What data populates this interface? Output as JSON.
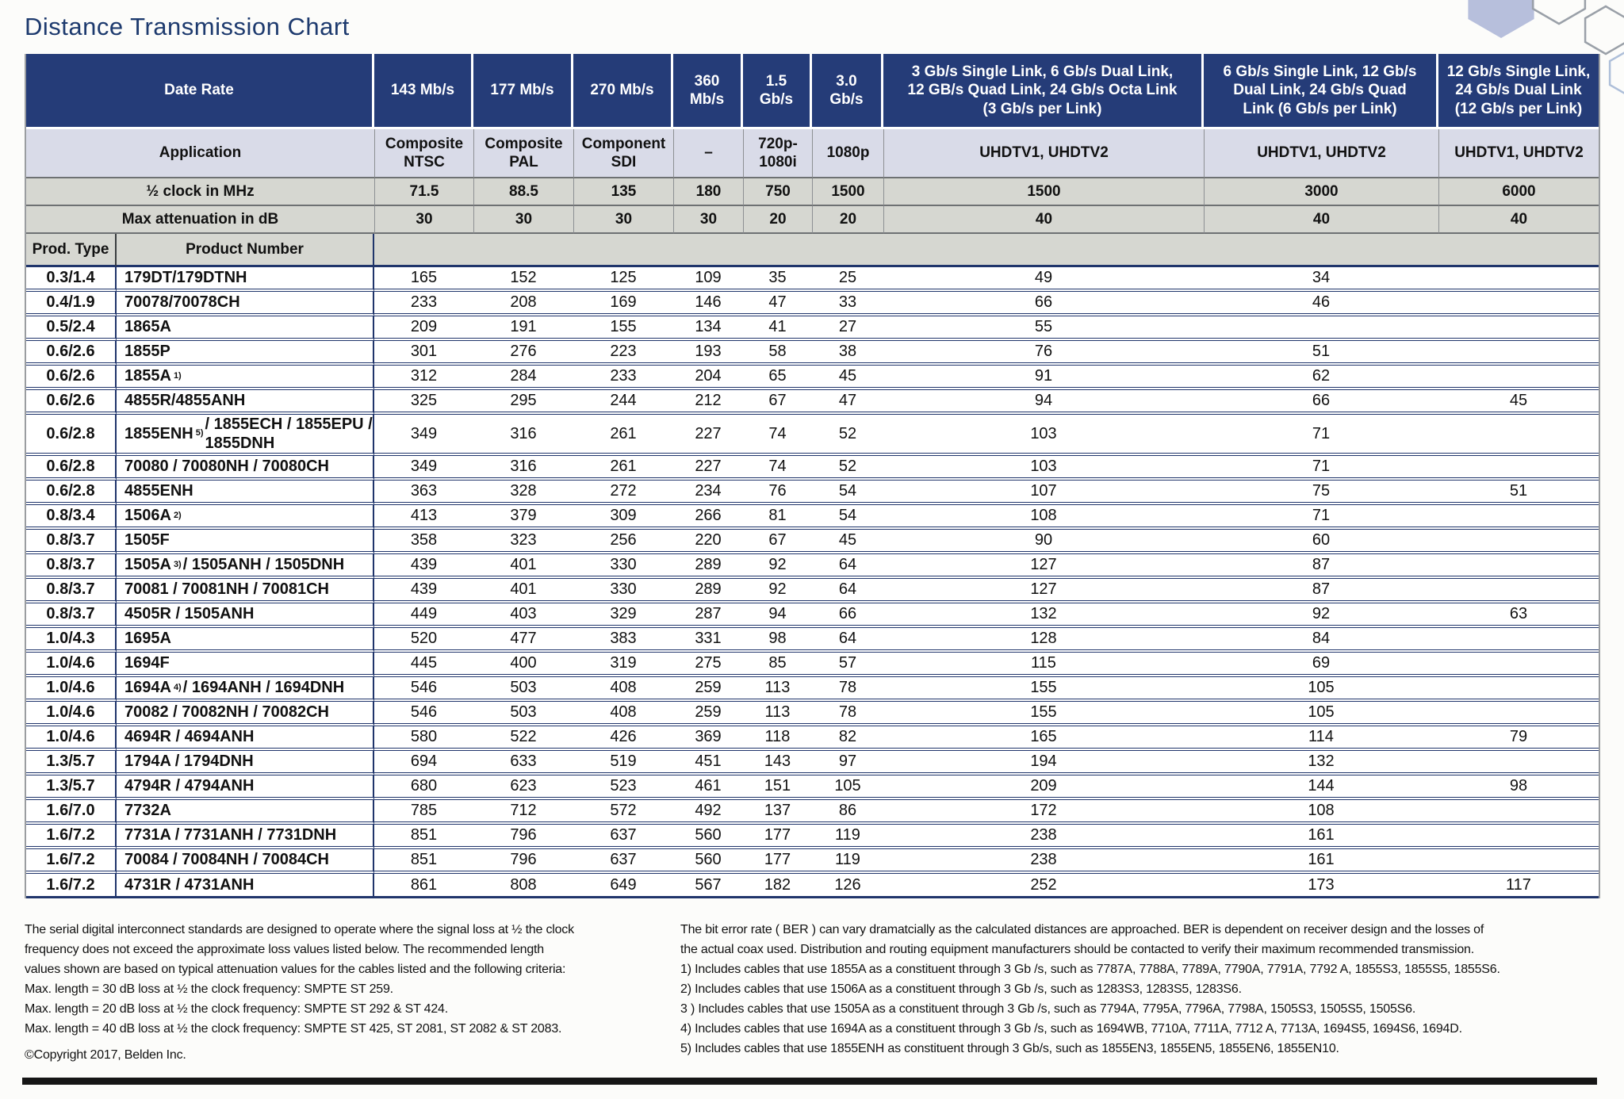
{
  "title": "Distance Transmission Chart",
  "colors": {
    "header_navy": "#253c78",
    "row_lavender": "#d9dbe8",
    "row_gray": "#d6d7d1",
    "line_navy": "#20356b",
    "title_navy": "#1d3a6e",
    "hex_fill": "#b7bfdc",
    "hex_stroke": "#9aa0a8"
  },
  "table": {
    "date_rate_label": "Date Rate",
    "date_rate_cols": [
      "143 Mb/s",
      "177 Mb/s",
      "270 Mb/s",
      "360\nMb/s",
      "1.5\nGb/s",
      "3.0\nGb/s",
      "3 Gb/s Single Link, 6 Gb/s Dual Link,\n12 GB/s Quad Link, 24 Gb/s Octa Link\n(3 Gb/s per Link)",
      "6 Gb/s Single Link, 12 Gb/s\nDual Link, 24 Gb/s Quad\nLink (6 Gb/s per Link)",
      "12 Gb/s Single Link,\n24 Gb/s Dual Link\n(12 Gb/s per Link)"
    ],
    "application_label": "Application",
    "application_cols": [
      "Composite\nNTSC",
      "Composite\nPAL",
      "Component\nSDI",
      "–",
      "720p-\n1080i",
      "1080p",
      "UHDTV1, UHDTV2",
      "UHDTV1, UHDTV2",
      "UHDTV1, UHDTV2"
    ],
    "half_clock_label": "½ clock in MHz",
    "half_clock_cols": [
      "71.5",
      "88.5",
      "135",
      "180",
      "750",
      "1500",
      "1500",
      "3000",
      "6000"
    ],
    "attenuation_label": "Max attenuation in dB",
    "attenuation_cols": [
      "30",
      "30",
      "30",
      "30",
      "20",
      "20",
      "40",
      "40",
      "40"
    ],
    "prod_type_label": "Prod. Type",
    "product_number_label": "Product Number",
    "rows": [
      {
        "type": "0.3/1.4",
        "pn": "179DT/179DTNH",
        "sup": "",
        "pn2": "",
        "tall": false,
        "values": [
          "165",
          "152",
          "125",
          "109",
          "35",
          "25",
          "49",
          "34",
          ""
        ]
      },
      {
        "type": "0.4/1.9",
        "pn": "70078/70078CH",
        "sup": "",
        "pn2": "",
        "tall": false,
        "values": [
          "233",
          "208",
          "169",
          "146",
          "47",
          "33",
          "66",
          "46",
          ""
        ]
      },
      {
        "type": "0.5/2.4",
        "pn": "1865A",
        "sup": "",
        "pn2": "",
        "tall": false,
        "values": [
          "209",
          "191",
          "155",
          "134",
          "41",
          "27",
          "55",
          "",
          ""
        ]
      },
      {
        "type": "0.6/2.6",
        "pn": "1855P",
        "sup": "",
        "pn2": "",
        "tall": false,
        "values": [
          "301",
          "276",
          "223",
          "193",
          "58",
          "38",
          "76",
          "51",
          ""
        ]
      },
      {
        "type": "0.6/2.6",
        "pn": "1855A",
        "sup": "1)",
        "pn2": "",
        "tall": false,
        "values": [
          "312",
          "284",
          "233",
          "204",
          "65",
          "45",
          "91",
          "62",
          ""
        ]
      },
      {
        "type": "0.6/2.6",
        "pn": "4855R/4855ANH",
        "sup": "",
        "pn2": "",
        "tall": false,
        "values": [
          "325",
          "295",
          "244",
          "212",
          "67",
          "47",
          "94",
          "66",
          "45"
        ]
      },
      {
        "type": "0.6/2.8",
        "pn": "1855ENH",
        "sup": "5)",
        "pn2": "/ 1855ECH / 1855EPU / 1855DNH",
        "tall": true,
        "values": [
          "349",
          "316",
          "261",
          "227",
          "74",
          "52",
          "103",
          "71",
          ""
        ]
      },
      {
        "type": "0.6/2.8",
        "pn": "70080 / 70080NH / 70080CH",
        "sup": "",
        "pn2": "",
        "tall": false,
        "values": [
          "349",
          "316",
          "261",
          "227",
          "74",
          "52",
          "103",
          "71",
          ""
        ]
      },
      {
        "type": "0.6/2.8",
        "pn": "4855ENH",
        "sup": "",
        "pn2": "",
        "tall": false,
        "values": [
          "363",
          "328",
          "272",
          "234",
          "76",
          "54",
          "107",
          "75",
          "51"
        ]
      },
      {
        "type": "0.8/3.4",
        "pn": "1506A",
        "sup": "2)",
        "pn2": "",
        "tall": false,
        "values": [
          "413",
          "379",
          "309",
          "266",
          "81",
          "54",
          "108",
          "71",
          ""
        ]
      },
      {
        "type": "0.8/3.7",
        "pn": "1505F",
        "sup": "",
        "pn2": "",
        "tall": false,
        "values": [
          "358",
          "323",
          "256",
          "220",
          "67",
          "45",
          "90",
          "60",
          ""
        ]
      },
      {
        "type": "0.8/3.7",
        "pn": "1505A",
        "sup": "3)",
        "pn2": "/ 1505ANH / 1505DNH",
        "tall": false,
        "values": [
          "439",
          "401",
          "330",
          "289",
          "92",
          "64",
          "127",
          "87",
          ""
        ]
      },
      {
        "type": "0.8/3.7",
        "pn": "70081 / 70081NH / 70081CH",
        "sup": "",
        "pn2": "",
        "tall": false,
        "values": [
          "439",
          "401",
          "330",
          "289",
          "92",
          "64",
          "127",
          "87",
          ""
        ]
      },
      {
        "type": "0.8/3.7",
        "pn": "4505R / 1505ANH",
        "sup": "",
        "pn2": "",
        "tall": false,
        "values": [
          "449",
          "403",
          "329",
          "287",
          "94",
          "66",
          "132",
          "92",
          "63"
        ]
      },
      {
        "type": "1.0/4.3",
        "pn": "1695A",
        "sup": "",
        "pn2": "",
        "tall": false,
        "values": [
          "520",
          "477",
          "383",
          "331",
          "98",
          "64",
          "128",
          "84",
          ""
        ]
      },
      {
        "type": "1.0/4.6",
        "pn": "1694F",
        "sup": "",
        "pn2": "",
        "tall": false,
        "values": [
          "445",
          "400",
          "319",
          "275",
          "85",
          "57",
          "115",
          "69",
          ""
        ]
      },
      {
        "type": "1.0/4.6",
        "pn": "1694A",
        "sup": "4)",
        "pn2": "/ 1694ANH / 1694DNH",
        "tall": false,
        "values": [
          "546",
          "503",
          "408",
          "259",
          "113",
          "78",
          "155",
          "105",
          ""
        ]
      },
      {
        "type": "1.0/4.6",
        "pn": "70082 / 70082NH / 70082CH",
        "sup": "",
        "pn2": "",
        "tall": false,
        "values": [
          "546",
          "503",
          "408",
          "259",
          "113",
          "78",
          "155",
          "105",
          ""
        ]
      },
      {
        "type": "1.0/4.6",
        "pn": "4694R / 4694ANH",
        "sup": "",
        "pn2": "",
        "tall": false,
        "values": [
          "580",
          "522",
          "426",
          "369",
          "118",
          "82",
          "165",
          "114",
          "79"
        ]
      },
      {
        "type": "1.3/5.7",
        "pn": "1794A / 1794DNH",
        "sup": "",
        "pn2": "",
        "tall": false,
        "values": [
          "694",
          "633",
          "519",
          "451",
          "143",
          "97",
          "194",
          "132",
          ""
        ]
      },
      {
        "type": "1.3/5.7",
        "pn": "4794R / 4794ANH",
        "sup": "",
        "pn2": "",
        "tall": false,
        "values": [
          "680",
          "623",
          "523",
          "461",
          "151",
          "105",
          "209",
          "144",
          "98"
        ]
      },
      {
        "type": "1.6/7.0",
        "pn": "7732A",
        "sup": "",
        "pn2": "",
        "tall": false,
        "values": [
          "785",
          "712",
          "572",
          "492",
          "137",
          "86",
          "172",
          "108",
          ""
        ]
      },
      {
        "type": "1.6/7.2",
        "pn": "7731A / 7731ANH / 7731DNH",
        "sup": "",
        "pn2": "",
        "tall": false,
        "values": [
          "851",
          "796",
          "637",
          "560",
          "177",
          "119",
          "238",
          "161",
          ""
        ]
      },
      {
        "type": "1.6/7.2",
        "pn": "70084 / 70084NH / 70084CH",
        "sup": "",
        "pn2": "",
        "tall": false,
        "values": [
          "851",
          "796",
          "637",
          "560",
          "177",
          "119",
          "238",
          "161",
          ""
        ]
      },
      {
        "type": "1.6/7.2",
        "pn": "4731R / 4731ANH",
        "sup": "",
        "pn2": "",
        "tall": false,
        "values": [
          "861",
          "808",
          "649",
          "567",
          "182",
          "126",
          "252",
          "173",
          "117"
        ]
      }
    ]
  },
  "footnotes_left": [
    "The serial digital interconnect standards are designed to operate where the signal loss at ½ the clock",
    "frequency does not exceed the approximate loss values listed below. The recommended length",
    "values shown are based on typical attenuation values for the cables listed and the following criteria:",
    "Max. length = 30 dB loss at ½ the clock frequency: SMPTE ST 259.",
    "Max. length = 20 dB loss at ½ the clock frequency: SMPTE ST 292 & ST 424.",
    "Max. length = 40 dB loss at ½ the clock frequency: SMPTE ST 425, ST 2081, ST 2082 & ST 2083."
  ],
  "copyright": "©Copyright 2017, Belden Inc.",
  "footnotes_right": [
    "The bit error rate ( BER ) can vary dramatcially as the calculated distances are approached. BER is dependent on receiver design and the losses of",
    "the actual coax used. Distribution and routing equipment manufacturers should be contacted to verify their maximum recommended transmission.",
    "1) Includes cables that use 1855A as a constituent through 3 Gb /s, such as 7787A, 7788A, 7789A, 7790A, 7791A, 7792 A, 1855S3, 1855S5, 1855S6.",
    "2) Includes cables that use 1506A as a constituent through 3 Gb /s, such as 1283S3, 1283S5, 1283S6.",
    "3 ) Includes cables that use 1505A as a constituent through 3 Gb /s, such as 7794A, 7795A, 7796A, 7798A, 1505S3, 1505S5, 1505S6.",
    "4) Includes cables that use 1694A as a constituent through 3 Gb /s, such as 1694WB, 7710A, 7711A, 7712 A, 7713A, 1694S5, 1694S6, 1694D.",
    "5) Includes cables that use 1855ENH as constituent through 3 Gb/s, such as 1855EN3, 1855EN5, 1855EN6, 1855EN10."
  ]
}
